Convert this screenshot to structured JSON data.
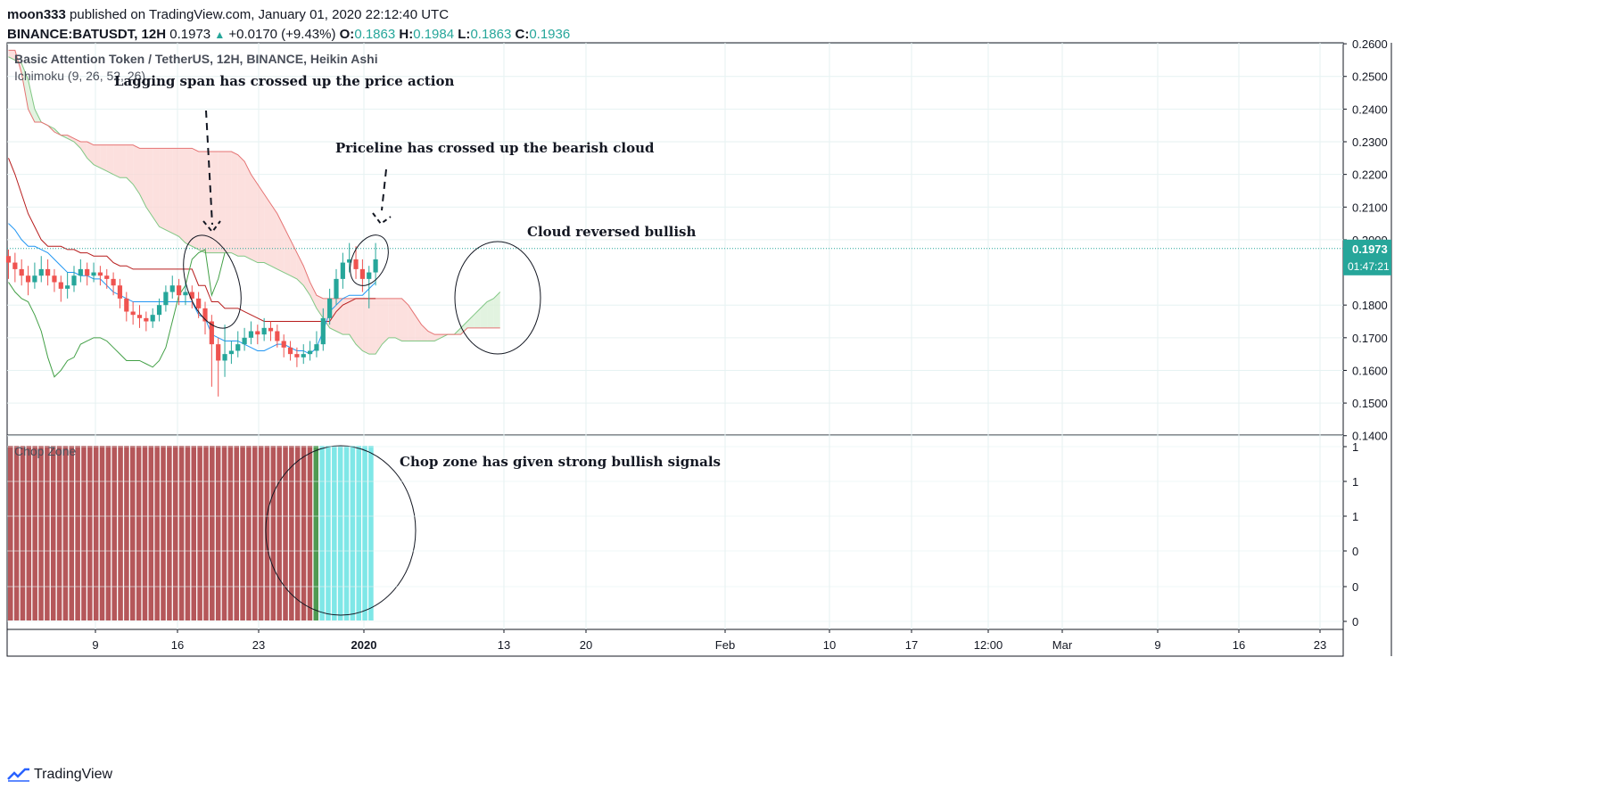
{
  "header": {
    "publisher": "moon333",
    "published_text": "published on TradingView.com, January 01, 2020 22:12:40 UTC",
    "symbol": "BINANCE:BATUSDT, 12H",
    "last": "0.1973",
    "change": "+0.0170 (+9.43%)",
    "o_label": "O:",
    "o": "0.1863",
    "h_label": "H:",
    "h": "0.1984",
    "l_label": "L:",
    "l": "0.1863",
    "c_label": "C:",
    "c": "0.1936"
  },
  "footer": {
    "brand": "TradingView",
    "logo_icon": "tradingview-logo-icon"
  },
  "colors": {
    "up": "#26a69a",
    "down": "#ef5350",
    "cloud_bear": "#fbd5d3",
    "cloud_bull": "#d8efd6",
    "chop_red": "#b5575a",
    "chop_cyan": "#7fe7e7",
    "chop_green": "#4e9a52"
  },
  "chart_data": [
    {
      "type": "candlestick",
      "title": "Basic Attention Token / TetherUS, 12H, BINANCE, Heikin Ashi",
      "indicator": "Ichimoku (9, 26, 52, 26)",
      "ylim": [
        0.14,
        0.26
      ],
      "y_ticks": [
        "0.2600",
        "0.2500",
        "0.2400",
        "0.2300",
        "0.2200",
        "0.2100",
        "0.2000",
        "0.1800",
        "0.1700",
        "0.1600",
        "0.1500",
        "0.1400"
      ],
      "x_ticks": [
        "9",
        "16",
        "23",
        "2020",
        "13",
        "20",
        "Feb",
        "10",
        "17",
        "12:00",
        "Mar",
        "9",
        "16",
        "23"
      ],
      "last_price_label": "0.1973",
      "countdown_label": "01:47:21",
      "last_price": 0.1973,
      "candles": [
        [
          0.195,
          0.193,
          0.197,
          0.188
        ],
        [
          0.193,
          0.191,
          0.196,
          0.187
        ],
        [
          0.191,
          0.189,
          0.194,
          0.186
        ],
        [
          0.189,
          0.187,
          0.192,
          0.183
        ],
        [
          0.187,
          0.189,
          0.193,
          0.185
        ],
        [
          0.189,
          0.191,
          0.195,
          0.187
        ],
        [
          0.191,
          0.189,
          0.194,
          0.186
        ],
        [
          0.189,
          0.187,
          0.191,
          0.184
        ],
        [
          0.187,
          0.185,
          0.189,
          0.181
        ],
        [
          0.185,
          0.186,
          0.19,
          0.182
        ],
        [
          0.186,
          0.189,
          0.192,
          0.184
        ],
        [
          0.189,
          0.191,
          0.194,
          0.187
        ],
        [
          0.191,
          0.189,
          0.193,
          0.186
        ],
        [
          0.189,
          0.19,
          0.193,
          0.187
        ],
        [
          0.19,
          0.189,
          0.192,
          0.186
        ],
        [
          0.189,
          0.188,
          0.191,
          0.185
        ],
        [
          0.188,
          0.186,
          0.19,
          0.183
        ],
        [
          0.186,
          0.182,
          0.188,
          0.179
        ],
        [
          0.182,
          0.178,
          0.184,
          0.175
        ],
        [
          0.178,
          0.177,
          0.181,
          0.174
        ],
        [
          0.177,
          0.176,
          0.18,
          0.173
        ],
        [
          0.176,
          0.175,
          0.178,
          0.172
        ],
        [
          0.175,
          0.177,
          0.179,
          0.173
        ],
        [
          0.177,
          0.18,
          0.182,
          0.175
        ],
        [
          0.18,
          0.184,
          0.186,
          0.178
        ],
        [
          0.184,
          0.186,
          0.189,
          0.182
        ],
        [
          0.186,
          0.183,
          0.188,
          0.18
        ],
        [
          0.183,
          0.184,
          0.187,
          0.18
        ],
        [
          0.184,
          0.182,
          0.186,
          0.179
        ],
        [
          0.182,
          0.179,
          0.184,
          0.176
        ],
        [
          0.179,
          0.175,
          0.181,
          0.171
        ],
        [
          0.175,
          0.168,
          0.177,
          0.155
        ],
        [
          0.168,
          0.163,
          0.17,
          0.152
        ],
        [
          0.163,
          0.165,
          0.174,
          0.158
        ],
        [
          0.165,
          0.166,
          0.169,
          0.162
        ],
        [
          0.166,
          0.168,
          0.172,
          0.164
        ],
        [
          0.168,
          0.17,
          0.173,
          0.166
        ],
        [
          0.17,
          0.172,
          0.175,
          0.168
        ],
        [
          0.172,
          0.171,
          0.174,
          0.168
        ],
        [
          0.171,
          0.173,
          0.176,
          0.169
        ],
        [
          0.173,
          0.172,
          0.175,
          0.169
        ],
        [
          0.172,
          0.169,
          0.174,
          0.167
        ],
        [
          0.169,
          0.167,
          0.171,
          0.164
        ],
        [
          0.167,
          0.165,
          0.169,
          0.163
        ],
        [
          0.165,
          0.164,
          0.167,
          0.161
        ],
        [
          0.164,
          0.165,
          0.168,
          0.162
        ],
        [
          0.165,
          0.166,
          0.169,
          0.163
        ],
        [
          0.166,
          0.168,
          0.172,
          0.164
        ],
        [
          0.168,
          0.176,
          0.179,
          0.166
        ],
        [
          0.176,
          0.182,
          0.185,
          0.174
        ],
        [
          0.182,
          0.188,
          0.191,
          0.18
        ],
        [
          0.188,
          0.193,
          0.196,
          0.185
        ],
        [
          0.193,
          0.194,
          0.199,
          0.19
        ],
        [
          0.194,
          0.191,
          0.198,
          0.188
        ],
        [
          0.191,
          0.188,
          0.194,
          0.184
        ],
        [
          0.188,
          0.19,
          0.192,
          0.179
        ],
        [
          0.19,
          0.194,
          0.199,
          0.186
        ]
      ],
      "ichimoku": {
        "conversion": [
          0.205,
          0.203,
          0.2,
          0.198,
          0.198,
          0.197,
          0.196,
          0.194,
          0.192,
          0.19,
          0.19,
          0.189,
          0.189,
          0.188,
          0.188,
          0.186,
          0.184,
          0.183,
          0.182,
          0.181,
          0.181,
          0.181,
          0.181,
          0.181,
          0.181,
          0.181,
          0.181,
          0.181,
          0.181,
          0.177,
          0.176,
          0.171,
          0.17,
          0.169,
          0.169,
          0.169,
          0.168,
          0.167,
          0.166,
          0.166,
          0.167,
          0.168,
          0.168,
          0.167,
          0.166,
          0.166,
          0.165,
          0.167,
          0.172,
          0.178,
          0.18,
          0.182,
          0.183,
          0.183,
          0.183,
          0.185,
          0.187
        ],
        "base": [
          0.225,
          0.22,
          0.214,
          0.208,
          0.204,
          0.2,
          0.198,
          0.198,
          0.198,
          0.197,
          0.197,
          0.196,
          0.196,
          0.195,
          0.195,
          0.195,
          0.193,
          0.192,
          0.192,
          0.191,
          0.191,
          0.191,
          0.191,
          0.191,
          0.191,
          0.191,
          0.191,
          0.191,
          0.191,
          0.186,
          0.186,
          0.181,
          0.181,
          0.179,
          0.179,
          0.179,
          0.178,
          0.177,
          0.176,
          0.175,
          0.175,
          0.175,
          0.175,
          0.175,
          0.175,
          0.175,
          0.175,
          0.175,
          0.175,
          0.175,
          0.178,
          0.18,
          0.181,
          0.182,
          0.182,
          0.182,
          0.182
        ],
        "lagging": [
          0.187,
          0.184,
          0.182,
          0.181,
          0.177,
          0.172,
          0.164,
          0.158,
          0.16,
          0.163,
          0.164,
          0.168,
          0.169,
          0.17,
          0.17,
          0.169,
          0.167,
          0.165,
          0.163,
          0.163,
          0.163,
          0.162,
          0.161,
          0.163,
          0.167,
          0.175,
          0.183,
          0.186,
          0.194,
          0.196,
          0.197,
          0.183,
          0.188,
          0.196
        ],
        "span_a": [
          0.256,
          0.255,
          0.254,
          0.249,
          0.24,
          0.236,
          0.235,
          0.234,
          0.232,
          0.231,
          0.23,
          0.228,
          0.225,
          0.223,
          0.222,
          0.221,
          0.22,
          0.219,
          0.219,
          0.217,
          0.214,
          0.21,
          0.207,
          0.204,
          0.203,
          0.202,
          0.201,
          0.199,
          0.198,
          0.197,
          0.196,
          0.196,
          0.196,
          0.196,
          0.196,
          0.195,
          0.195,
          0.194,
          0.193,
          0.193,
          0.192,
          0.191,
          0.19,
          0.189,
          0.188,
          0.186,
          0.183,
          0.179,
          0.176,
          0.173,
          0.172,
          0.171,
          0.171,
          0.168,
          0.166,
          0.165,
          0.165,
          0.168,
          0.17,
          0.17,
          0.169,
          0.169,
          0.169,
          0.169,
          0.169,
          0.169,
          0.17,
          0.171,
          0.171,
          0.173,
          0.175,
          0.177,
          0.179,
          0.181,
          0.182,
          0.184
        ],
        "span_b": [
          0.258,
          0.258,
          0.251,
          0.24,
          0.236,
          0.236,
          0.235,
          0.233,
          0.232,
          0.232,
          0.231,
          0.23,
          0.23,
          0.229,
          0.229,
          0.229,
          0.229,
          0.229,
          0.229,
          0.229,
          0.228,
          0.228,
          0.228,
          0.228,
          0.228,
          0.228,
          0.228,
          0.228,
          0.228,
          0.227,
          0.227,
          0.227,
          0.227,
          0.227,
          0.227,
          0.226,
          0.224,
          0.22,
          0.217,
          0.214,
          0.211,
          0.208,
          0.204,
          0.2,
          0.196,
          0.192,
          0.187,
          0.183,
          0.182,
          0.182,
          0.182,
          0.182,
          0.182,
          0.182,
          0.182,
          0.182,
          0.182,
          0.182,
          0.182,
          0.182,
          0.182,
          0.18,
          0.177,
          0.174,
          0.172,
          0.171,
          0.171,
          0.171,
          0.171,
          0.171,
          0.173,
          0.173,
          0.173,
          0.173,
          0.173,
          0.173
        ]
      },
      "annotations": [
        "Lagging span has crossed up the price action",
        "Priceline has crossed up the bearish cloud",
        "Cloud reversed bullish"
      ]
    },
    {
      "type": "bar",
      "title": "Chop Zone",
      "y_ticks": [
        "1",
        "1",
        "1",
        "0",
        "0",
        "0"
      ],
      "colors": [
        "red",
        "red",
        "red",
        "red",
        "red",
        "red",
        "red",
        "red",
        "red",
        "red",
        "red",
        "red",
        "red",
        "red",
        "red",
        "red",
        "red",
        "red",
        "red",
        "red",
        "red",
        "red",
        "red",
        "red",
        "red",
        "red",
        "red",
        "red",
        "red",
        "red",
        "red",
        "red",
        "red",
        "red",
        "red",
        "red",
        "red",
        "red",
        "red",
        "red",
        "red",
        "red",
        "red",
        "red",
        "red",
        "red",
        "red",
        "red",
        "red",
        "red",
        "green",
        "cyan",
        "cyan",
        "cyan",
        "cyan",
        "cyan",
        "cyan",
        "cyan",
        "cyan",
        "cyan"
      ],
      "annotations": [
        "Chop zone has given strong bullish signals"
      ]
    }
  ]
}
